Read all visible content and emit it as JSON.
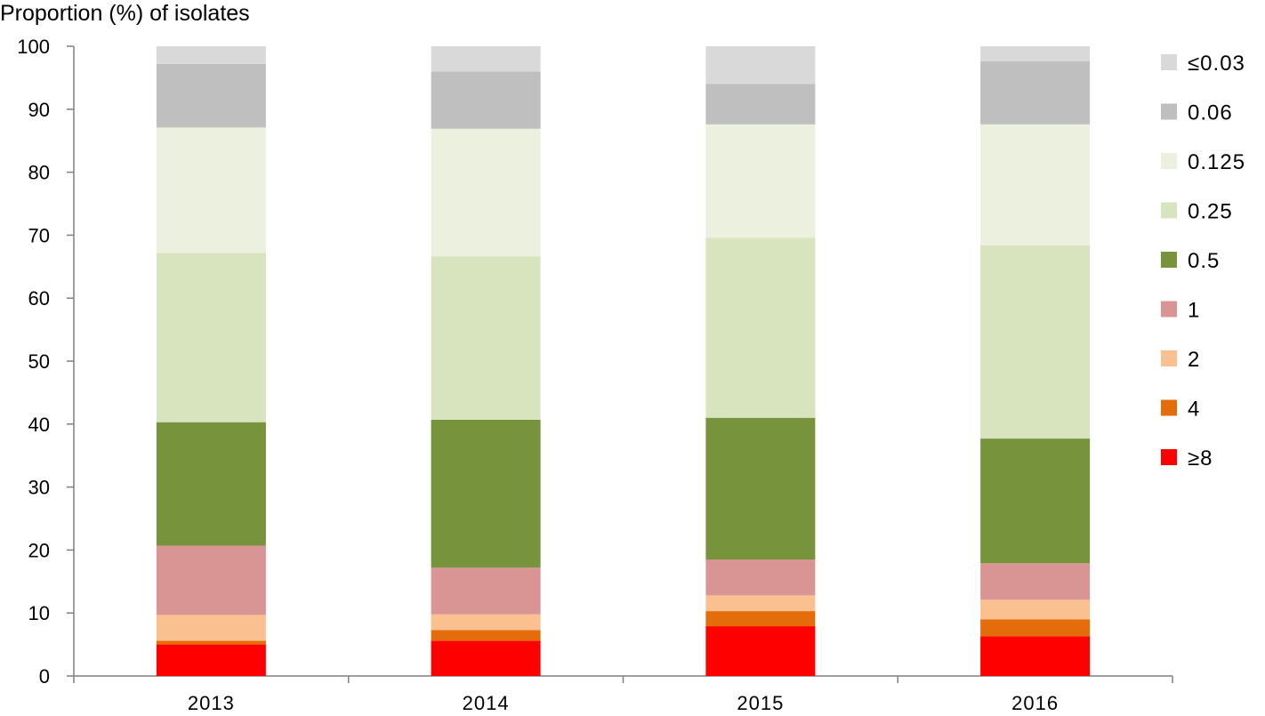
{
  "chart_data": {
    "type": "bar",
    "stacked": true,
    "ylabel": "Proportion (%) of isolates",
    "xlabel": "",
    "ylim": [
      0,
      100
    ],
    "yticks": [
      "0",
      "10",
      "20",
      "30",
      "40",
      "50",
      "60",
      "70",
      "80",
      "90",
      "100"
    ],
    "categories": [
      "2013",
      "2014",
      "2015",
      "2016"
    ],
    "grid": false,
    "legend_position": "right",
    "series": [
      {
        "name": "≥8",
        "color": "#FF0000",
        "values": [
          5.0,
          5.6,
          7.9,
          6.3
        ]
      },
      {
        "name": "4",
        "color": "#E46C0A",
        "values": [
          0.6,
          1.7,
          2.4,
          2.7
        ]
      },
      {
        "name": "2",
        "color": "#FAC090",
        "values": [
          4.1,
          2.5,
          2.5,
          3.1
        ]
      },
      {
        "name": "1",
        "color": "#D99594",
        "values": [
          11.0,
          7.4,
          5.7,
          5.8
        ]
      },
      {
        "name": "0.5",
        "color": "#77933C",
        "values": [
          19.6,
          23.5,
          22.5,
          19.8
        ]
      },
      {
        "name": "0.25",
        "color": "#D7E4BD",
        "values": [
          26.9,
          25.9,
          28.6,
          30.7
        ]
      },
      {
        "name": "0.125",
        "color": "#EBF1DE",
        "values": [
          19.9,
          20.3,
          18.0,
          19.2
        ]
      },
      {
        "name": "0.06",
        "color": "#BFBFBF",
        "values": [
          10.1,
          9.1,
          6.4,
          10.0
        ]
      },
      {
        "name": "≤0.03",
        "color": "#D9D9D9",
        "values": [
          2.8,
          4.0,
          6.0,
          2.4
        ]
      }
    ]
  }
}
